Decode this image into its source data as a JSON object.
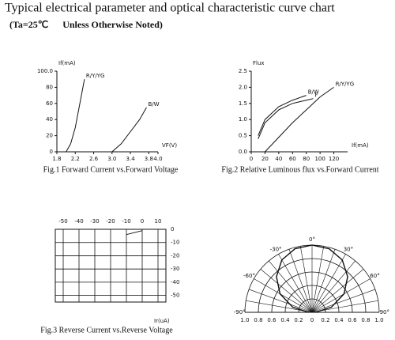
{
  "header": {
    "title": "Typical electrical parameter and optical characteristic curve chart",
    "subtitle": "(Ta=25℃      Unless Otherwise Noted)"
  },
  "chart_data": [
    {
      "type": "line",
      "caption": "Fig.1 Forward Current  vs.Forward Voltage",
      "x_label": "VF(V)",
      "y_label": "If(mA)",
      "xlim": [
        1.8,
        4.0
      ],
      "xticks": [
        1.8,
        2.2,
        2.6,
        {
          "value": 3,
          "label": "3.0"
        },
        3.4,
        3.8,
        {
          "value": 4,
          "label": "4.0"
        }
      ],
      "ylim": [
        0,
        100
      ],
      "yticks": [
        0,
        20,
        40,
        60,
        80,
        {
          "value": 100,
          "label": "100.0"
        }
      ],
      "grid": false,
      "series": [
        {
          "name": "R/Y/YG",
          "color": "#111111",
          "x": [
            2.0,
            2.1,
            2.2,
            2.3,
            2.4
          ],
          "values": [
            0,
            10,
            30,
            60,
            90
          ]
        },
        {
          "name": "B/W",
          "color": "#111111",
          "x": [
            3.0,
            3.2,
            3.4,
            3.6,
            3.75
          ],
          "values": [
            0,
            10,
            25,
            40,
            55
          ]
        }
      ]
    },
    {
      "type": "line",
      "caption": "Fig.2 Relative Luminous flux vs.Forward Current",
      "x_label": "If(mA)",
      "y_label": "Flux",
      "xlim": [
        0,
        140
      ],
      "xticks": [
        0,
        20,
        40,
        60,
        80,
        100,
        120
      ],
      "ylim": [
        0,
        2.5
      ],
      "yticks": [
        {
          "value": 0,
          "label": "0.0"
        },
        0.5,
        {
          "value": 1,
          "label": "1.0"
        },
        1.5,
        {
          "value": 2,
          "label": "2.0"
        },
        2.5
      ],
      "grid": false,
      "series": [
        {
          "name": "B/W",
          "color": "#111111",
          "x": [
            10,
            20,
            40,
            60,
            80
          ],
          "values": [
            0.5,
            1.0,
            1.4,
            1.6,
            1.75
          ]
        },
        {
          "name": "F",
          "color": "#111111",
          "x": [
            10,
            20,
            40,
            60,
            80,
            90
          ],
          "values": [
            0.4,
            0.9,
            1.3,
            1.5,
            1.6,
            1.65
          ]
        },
        {
          "name": "R/Y/YG",
          "color": "#111111",
          "x": [
            20,
            40,
            60,
            80,
            100,
            120
          ],
          "values": [
            0,
            0.45,
            0.9,
            1.3,
            1.7,
            2.0
          ]
        }
      ]
    },
    {
      "type": "line",
      "caption": "Fig.3 Reverse Current vs.Reverse Voltage",
      "x_label": "Ir(uA)",
      "x_axis_position": "top",
      "y_axis_position": "right",
      "xlim": [
        -55,
        15
      ],
      "xticks": [
        -50,
        -40,
        -30,
        -20,
        -10,
        0,
        10
      ],
      "ylim": [
        -55,
        0
      ],
      "yticks": [
        0,
        -10,
        -20,
        -30,
        -40,
        -50
      ],
      "grid": true,
      "series": [
        {
          "color": "#111111",
          "x": [
            -10,
            0
          ],
          "values": [
            -4,
            -1
          ]
        }
      ]
    },
    {
      "type": "polar",
      "angles": [
        {
          "value": -90,
          "label": "-90°"
        },
        {
          "value": -60,
          "label": "-60°"
        },
        {
          "value": -30,
          "label": "-30°"
        },
        {
          "value": 0,
          "label": "0°"
        },
        {
          "value": 30,
          "label": "30°"
        },
        {
          "value": 60,
          "label": "60°"
        },
        {
          "value": 90,
          "label": "90°"
        }
      ],
      "rlim": [
        0,
        1
      ],
      "rticks": [
        0,
        0.2,
        0.4,
        0.6,
        0.8,
        {
          "value": 1,
          "label": "1.0"
        }
      ],
      "series": [
        {
          "color": "#111111",
          "theta": [
            -90,
            -75,
            -60,
            -45,
            -30,
            -15,
            0,
            15,
            30,
            45,
            60,
            75,
            90
          ],
          "values": [
            0.05,
            0.3,
            0.55,
            0.75,
            0.9,
            0.98,
            1.0,
            0.98,
            0.9,
            0.75,
            0.55,
            0.3,
            0.05
          ]
        }
      ]
    }
  ]
}
